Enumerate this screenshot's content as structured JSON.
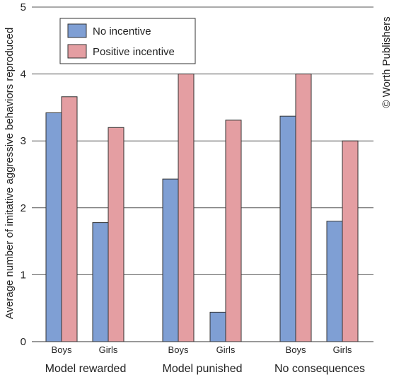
{
  "chart_data": {
    "type": "bar",
    "ylabel": "Average number of imitative aggressive behaviors reproduced",
    "ylim": [
      0,
      5
    ],
    "yticks": [
      "0",
      "1",
      "2",
      "3",
      "4",
      "5"
    ],
    "grid": true,
    "legend_position": "top-left",
    "credit": "© Worth Publishers",
    "colors": {
      "No incentive": "#7f9fd4",
      "Positive incentive": "#e49ea2"
    },
    "groups": [
      {
        "label": "Model rewarded",
        "categories": [
          {
            "label": "Boys",
            "values": [
              3.42,
              3.66
            ]
          },
          {
            "label": "Girls",
            "values": [
              1.78,
              3.2
            ]
          }
        ]
      },
      {
        "label": "Model punished",
        "categories": [
          {
            "label": "Boys",
            "values": [
              2.43,
              4.0
            ]
          },
          {
            "label": "Girls",
            "values": [
              0.44,
              3.31
            ]
          }
        ]
      },
      {
        "label": "No consequences",
        "categories": [
          {
            "label": "Boys",
            "values": [
              3.37,
              4.0
            ]
          },
          {
            "label": "Girls",
            "values": [
              1.8,
              3.0
            ]
          }
        ]
      }
    ],
    "series": [
      {
        "name": "No incentive"
      },
      {
        "name": "Positive incentive"
      }
    ]
  }
}
